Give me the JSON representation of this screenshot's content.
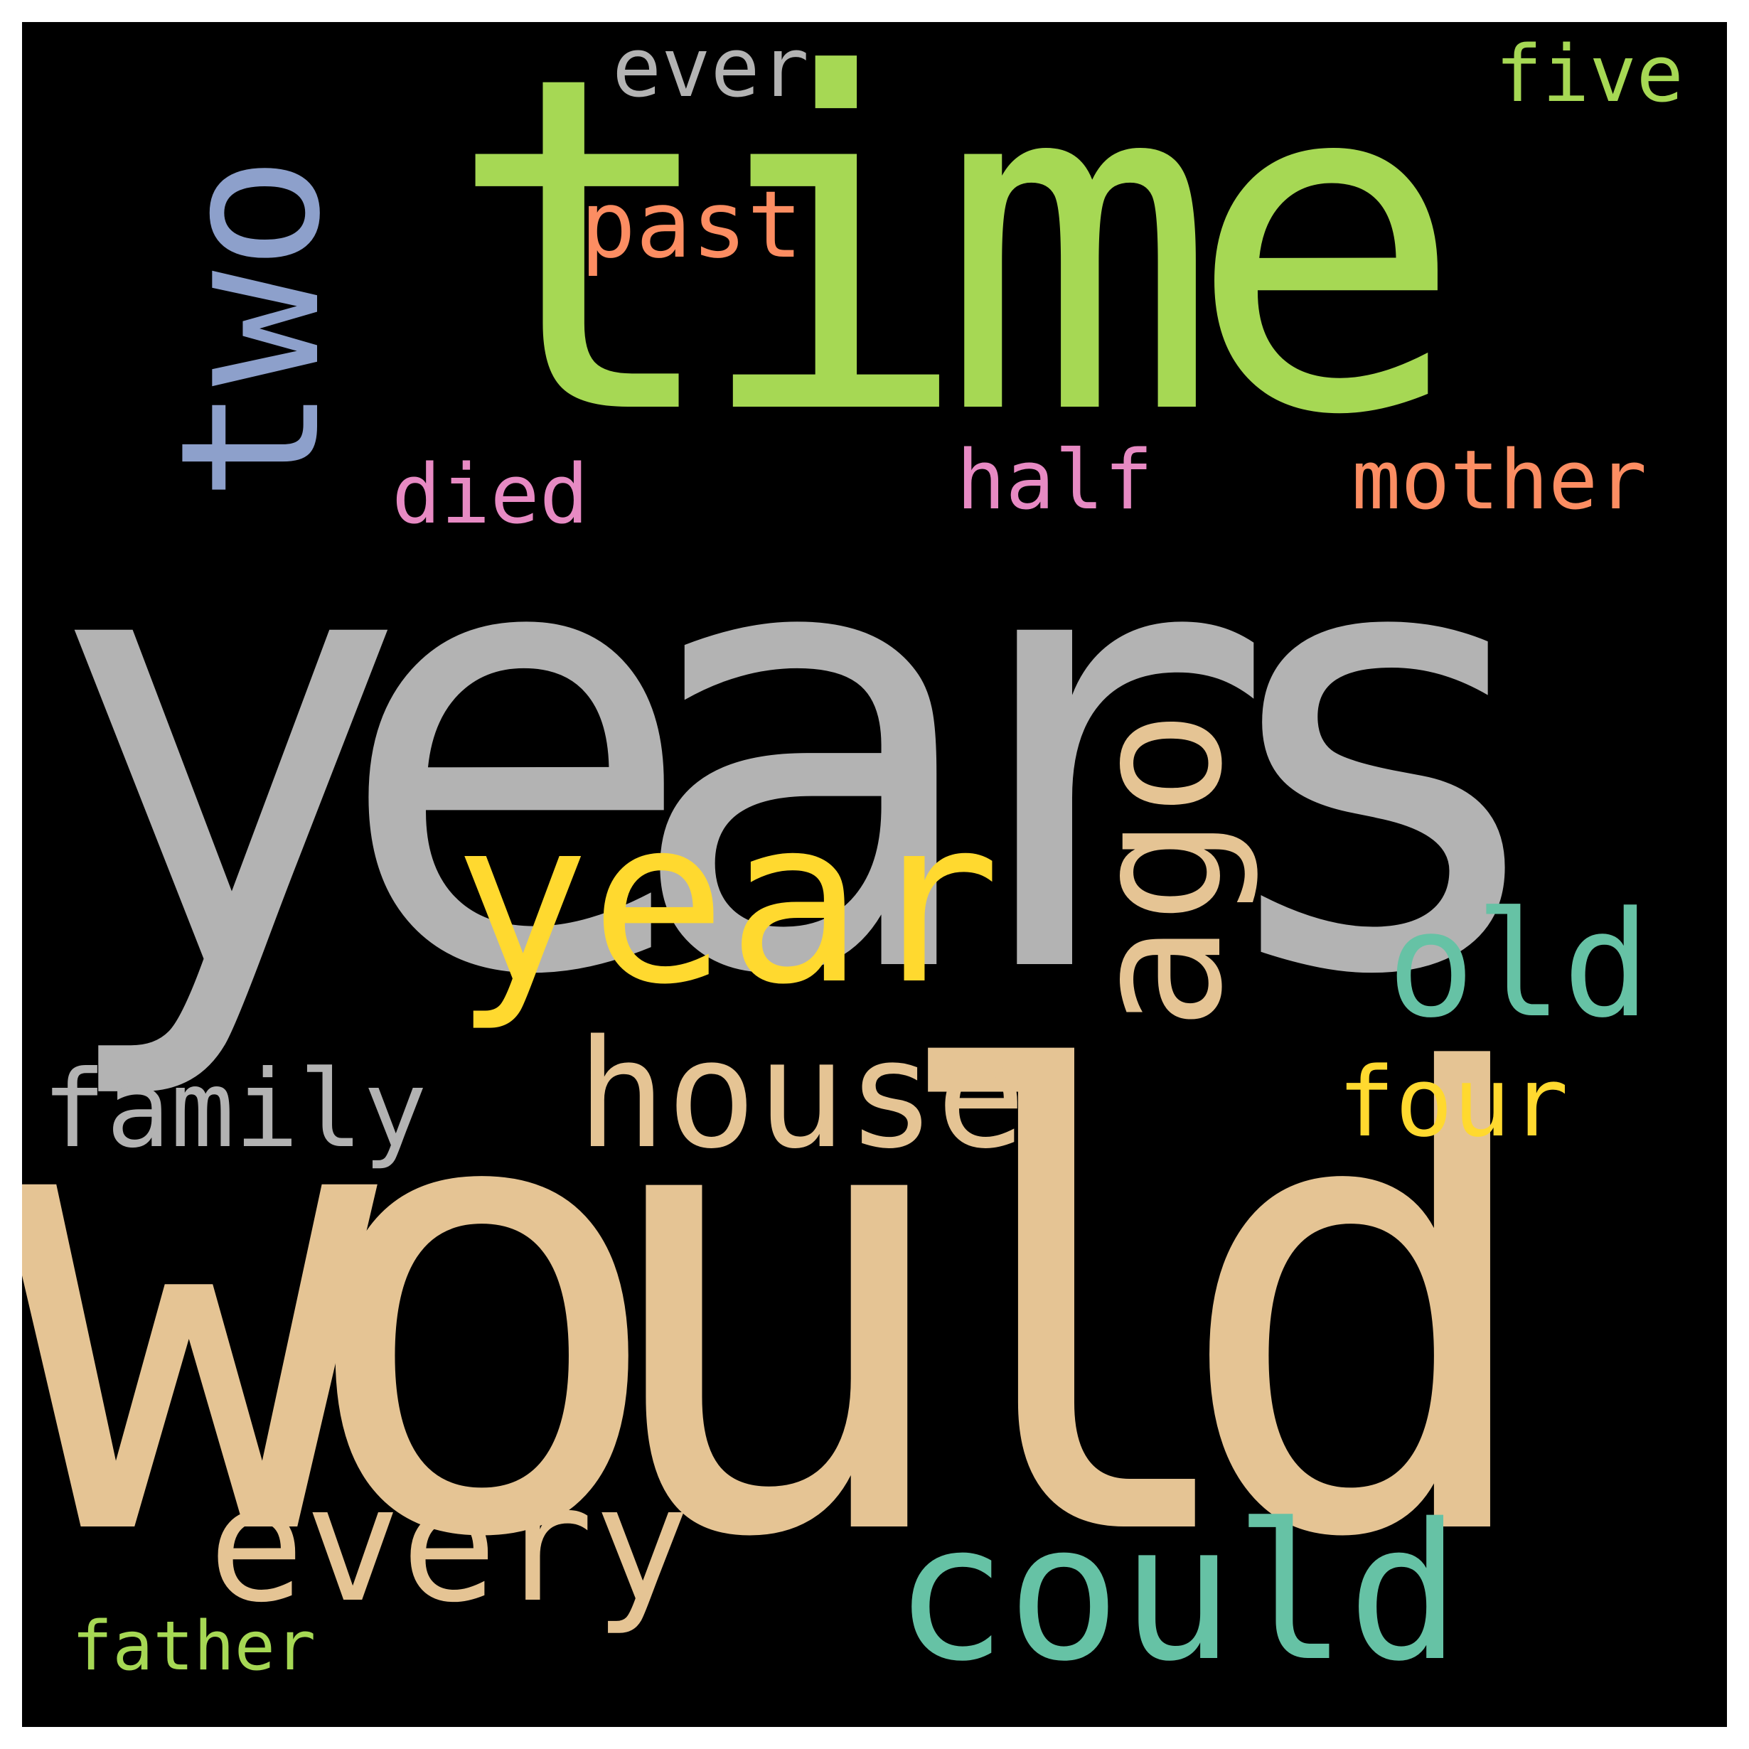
{
  "words": {
    "years": {
      "text": "years",
      "color": "#b3b3b3"
    },
    "would": {
      "text": "would",
      "color": "#e5c494"
    },
    "time": {
      "text": "time",
      "color": "#a6d854"
    },
    "two": {
      "text": "two",
      "color": "#8da0cb"
    },
    "ago": {
      "text": "ago",
      "color": "#e5c494"
    },
    "year": {
      "text": "year",
      "color": "#ffd92f"
    },
    "old": {
      "text": "old",
      "color": "#66c2a5"
    },
    "house": {
      "text": "house",
      "color": "#e5c494"
    },
    "family": {
      "text": "family",
      "color": "#b3b3b3"
    },
    "four": {
      "text": "four",
      "color": "#ffd92f"
    },
    "every": {
      "text": "every",
      "color": "#e5c494"
    },
    "could": {
      "text": "could",
      "color": "#66c2a5"
    },
    "father": {
      "text": "father",
      "color": "#a6d854"
    },
    "past": {
      "text": "past",
      "color": "#fc8d62"
    },
    "ever": {
      "text": "ever",
      "color": "#b3b3b3"
    },
    "five": {
      "text": "five",
      "color": "#a6d854"
    },
    "died": {
      "text": "died",
      "color": "#e78ac3"
    },
    "half": {
      "text": "half",
      "color": "#e78ac3"
    },
    "mother": {
      "text": "mother",
      "color": "#fc8d62"
    }
  },
  "background_color": "#000000",
  "frame_color": "#ffffff"
}
